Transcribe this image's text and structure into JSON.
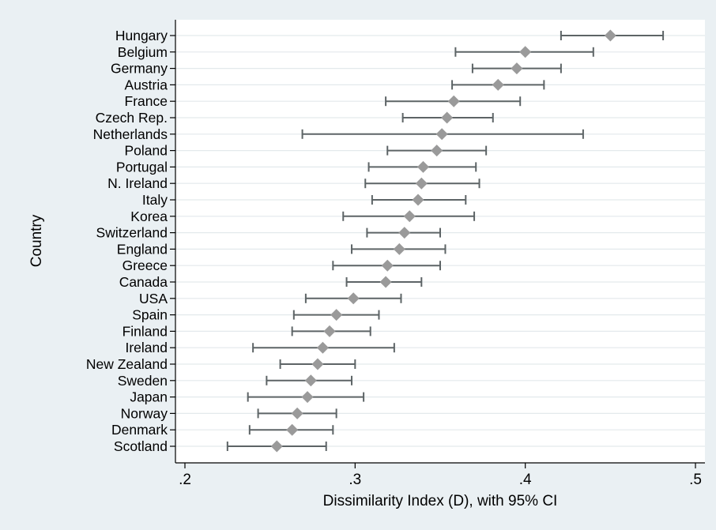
{
  "colors": {
    "background": "#eaf0f3",
    "plot_background": "#ffffff",
    "grid": "#e3e9ec",
    "marker": "#9a9a9a",
    "ci_line": "#5d6466",
    "axis": "#000000"
  },
  "chart_data": {
    "type": "scatter",
    "subtype": "dot-plot with error bars (95% CI)",
    "xlabel": "Dissimilarity Index (D), with 95% CI",
    "ylabel": "Country",
    "xlim": [
      0.2,
      0.5
    ],
    "x_ticks": [
      0.2,
      0.3,
      0.4,
      0.5
    ],
    "x_tick_labels": [
      ".2",
      ".3",
      ".4",
      ".5"
    ],
    "grid": "horizontal lines at each country",
    "marker": "diamond",
    "categories": [
      "Hungary",
      "Belgium",
      "Germany",
      "Austria",
      "France",
      "Czech Rep.",
      "Netherlands",
      "Poland",
      "Portugal",
      "N. Ireland",
      "Italy",
      "Korea",
      "Switzerland",
      "England",
      "Greece",
      "Canada",
      "USA",
      "Spain",
      "Finland",
      "Ireland",
      "New Zealand",
      "Sweden",
      "Japan",
      "Norway",
      "Denmark",
      "Scotland"
    ],
    "values": [
      0.45,
      0.4,
      0.395,
      0.384,
      0.358,
      0.354,
      0.351,
      0.348,
      0.34,
      0.339,
      0.337,
      0.332,
      0.329,
      0.326,
      0.319,
      0.318,
      0.299,
      0.289,
      0.285,
      0.281,
      0.278,
      0.274,
      0.272,
      0.266,
      0.263,
      0.254
    ],
    "ci_lower": [
      0.421,
      0.359,
      0.369,
      0.357,
      0.318,
      0.328,
      0.269,
      0.319,
      0.308,
      0.306,
      0.31,
      0.293,
      0.307,
      0.298,
      0.287,
      0.295,
      0.271,
      0.264,
      0.263,
      0.24,
      0.256,
      0.248,
      0.237,
      0.243,
      0.238,
      0.225
    ],
    "ci_upper": [
      0.481,
      0.44,
      0.421,
      0.411,
      0.397,
      0.381,
      0.434,
      0.377,
      0.371,
      0.373,
      0.365,
      0.37,
      0.35,
      0.353,
      0.35,
      0.339,
      0.327,
      0.314,
      0.309,
      0.323,
      0.3,
      0.298,
      0.305,
      0.289,
      0.287,
      0.283
    ]
  }
}
